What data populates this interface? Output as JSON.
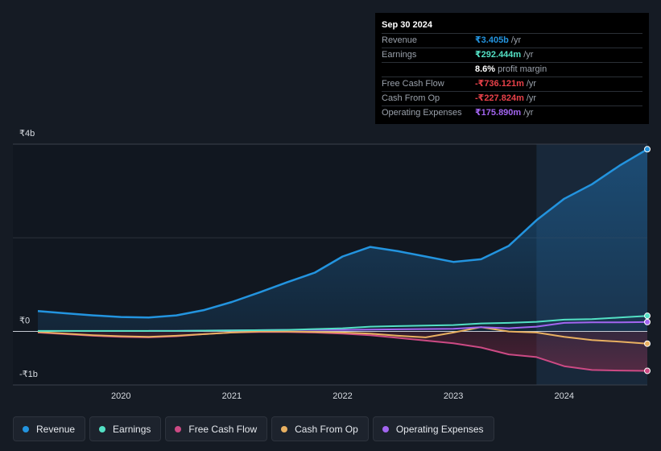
{
  "tooltip": {
    "date": "Sep 30 2024",
    "rows": [
      {
        "label": "Revenue",
        "value": "₹3.405b",
        "unit": "/yr",
        "color": "#2394df"
      },
      {
        "label": "Earnings",
        "value": "₹292.444m",
        "unit": "/yr",
        "color": "#53e0c4"
      },
      {
        "label": "",
        "value": "8.6%",
        "unit": "profit margin",
        "color": "#ffffff"
      },
      {
        "label": "Free Cash Flow",
        "value": "-₹736.121m",
        "unit": "/yr",
        "color": "#e84149"
      },
      {
        "label": "Cash From Op",
        "value": "-₹227.824m",
        "unit": "/yr",
        "color": "#e84149"
      },
      {
        "label": "Operating Expenses",
        "value": "₹175.890m",
        "unit": "/yr",
        "color": "#a265f0"
      }
    ]
  },
  "legend": [
    {
      "label": "Revenue",
      "color": "#2394df"
    },
    {
      "label": "Earnings",
      "color": "#53e0c4"
    },
    {
      "label": "Free Cash Flow",
      "color": "#cc4a84"
    },
    {
      "label": "Cash From Op",
      "color": "#e8b061"
    },
    {
      "label": "Operating Expenses",
      "color": "#a265f0"
    }
  ],
  "chart_data": {
    "type": "area",
    "y_tick_labels": [
      "₹4b",
      "₹0",
      "-₹1b"
    ],
    "ylim": [
      -1.0,
      3.5
    ],
    "xlim": [
      2019.25,
      2024.75
    ],
    "x_tick_labels": [
      "2020",
      "2021",
      "2022",
      "2023",
      "2024"
    ],
    "highlight_from": 2023.75,
    "series": [
      {
        "name": "Revenue",
        "color": "#2394df",
        "x": [
          2019.25,
          2019.5,
          2019.75,
          2020,
          2020.25,
          2020.5,
          2020.75,
          2021,
          2021.25,
          2021.5,
          2021.75,
          2022,
          2022.25,
          2022.5,
          2022.75,
          2023,
          2023.25,
          2023.5,
          2023.75,
          2024,
          2024.25,
          2024.5,
          2024.75
        ],
        "y": [
          0.38,
          0.34,
          0.3,
          0.27,
          0.26,
          0.3,
          0.4,
          0.55,
          0.73,
          0.92,
          1.1,
          1.4,
          1.58,
          1.5,
          1.4,
          1.3,
          1.35,
          1.6,
          2.08,
          2.48,
          2.75,
          3.1,
          3.405
        ]
      },
      {
        "name": "Earnings",
        "color": "#53e0c4",
        "x": [
          2019.25,
          2019.5,
          2020,
          2020.5,
          2021,
          2021.5,
          2022,
          2022.25,
          2022.5,
          2022.75,
          2023,
          2023.25,
          2023.5,
          2023.75,
          2024,
          2024.25,
          2024.5,
          2024.75
        ],
        "y": [
          0.01,
          0.01,
          0.01,
          0.01,
          0.02,
          0.03,
          0.06,
          0.09,
          0.1,
          0.11,
          0.12,
          0.15,
          0.16,
          0.18,
          0.22,
          0.23,
          0.26,
          0.292
        ]
      },
      {
        "name": "Free Cash Flow",
        "color": "#cc4a84",
        "x": [
          2019.25,
          2019.5,
          2019.75,
          2020,
          2020.25,
          2020.5,
          2020.75,
          2021,
          2021.25,
          2021.5,
          2021.75,
          2022,
          2022.25,
          2022.5,
          2022.75,
          2023,
          2023.25,
          2023.5,
          2023.75,
          2024,
          2024.25,
          2024.5,
          2024.75
        ],
        "y": [
          -0.02,
          -0.05,
          -0.08,
          -0.1,
          -0.11,
          -0.09,
          -0.05,
          -0.02,
          -0.01,
          -0.01,
          -0.02,
          -0.04,
          -0.07,
          -0.12,
          -0.17,
          -0.22,
          -0.3,
          -0.43,
          -0.48,
          -0.65,
          -0.72,
          -0.73,
          -0.736
        ]
      },
      {
        "name": "Cash From Op",
        "color": "#e8b061",
        "x": [
          2019.25,
          2019.5,
          2019.75,
          2020,
          2020.25,
          2020.5,
          2020.75,
          2021,
          2021.25,
          2021.5,
          2021.75,
          2022,
          2022.25,
          2022.5,
          2022.75,
          2023,
          2023.25,
          2023.5,
          2023.75,
          2024,
          2024.25,
          2024.5,
          2024.75
        ],
        "y": [
          -0.01,
          -0.04,
          -0.07,
          -0.09,
          -0.1,
          -0.08,
          -0.05,
          -0.02,
          0.0,
          0.0,
          -0.01,
          -0.02,
          -0.04,
          -0.08,
          -0.11,
          -0.02,
          0.08,
          0.0,
          -0.02,
          -0.1,
          -0.16,
          -0.19,
          -0.228
        ]
      },
      {
        "name": "Operating Expenses",
        "color": "#a265f0",
        "x": [
          2020.25,
          2020.5,
          2021,
          2021.5,
          2022,
          2022.5,
          2023,
          2023.25,
          2023.5,
          2023.75,
          2024,
          2024.25,
          2024.5,
          2024.75
        ],
        "y": [
          0.01,
          0.01,
          0.02,
          0.03,
          0.03,
          0.04,
          0.05,
          0.08,
          0.06,
          0.09,
          0.16,
          0.17,
          0.17,
          0.176
        ]
      }
    ]
  }
}
